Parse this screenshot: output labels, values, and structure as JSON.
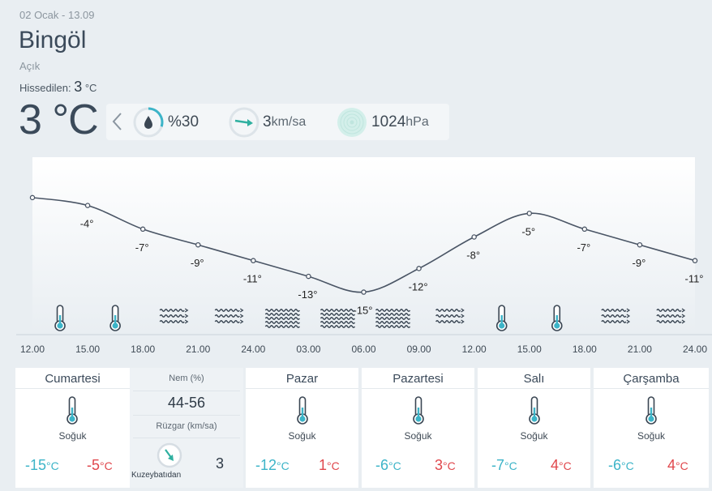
{
  "location": {
    "date": "02 Ocak - 13.09",
    "city": "Bingöl",
    "condition": "Açık",
    "feels_label": "Hissedilen:",
    "feels_value": "3",
    "feels_unit": "°C",
    "temperature": "3 °C"
  },
  "stats": {
    "humidity": "%30",
    "humidity_fraction": 0.3,
    "wind_value": "3",
    "wind_unit": "km/sa",
    "pressure_value": "1024",
    "pressure_unit": "hPa"
  },
  "colors": {
    "accent_teal": "#3cb4c8",
    "hot_red": "#e0474c",
    "line": "#4a5565"
  },
  "chart_data": {
    "type": "line",
    "x": [
      "12.00",
      "15.00",
      "18.00",
      "21.00",
      "24.00",
      "03.00",
      "06.00",
      "09.00",
      "12.00",
      "15.00",
      "18.00",
      "21.00",
      "24.00"
    ],
    "values": [
      -3,
      -4,
      -7,
      -9,
      -11,
      -13,
      -15,
      -12,
      -8,
      -5,
      -7,
      -9,
      -11
    ],
    "labels": [
      "",
      "-4°",
      "-7°",
      "-9°",
      "-11°",
      "-13°",
      "-15°",
      "-12°",
      "-8°",
      "-5°",
      "-7°",
      "-9°",
      "-11°"
    ],
    "icons": [
      "",
      "thermometer-icon",
      "thermometer-icon",
      "wind-icon",
      "wind-icon",
      "heavy-wind-icon",
      "heavy-wind-icon",
      "heavy-wind-icon",
      "wind-icon",
      "thermometer-icon",
      "thermometer-icon",
      "wind-icon",
      "wind-icon"
    ],
    "ylim": [
      -17,
      1
    ]
  },
  "forecast": [
    {
      "day": "Cumartesi",
      "condition": "Soğuk",
      "min": "-15",
      "max": "-5",
      "unit": "°C"
    },
    {
      "day": "Pazar",
      "condition": "Soğuk",
      "min": "-12",
      "max": "1",
      "unit": "°C"
    },
    {
      "day": "Pazartesi",
      "condition": "Soğuk",
      "min": "-6",
      "max": "3",
      "unit": "°C"
    },
    {
      "day": "Salı",
      "condition": "Soğuk",
      "min": "-7",
      "max": "4",
      "unit": "°C"
    },
    {
      "day": "Çarşamba",
      "condition": "Soğuk",
      "min": "-6",
      "max": "4",
      "unit": "°C"
    }
  ],
  "detail": {
    "humidity_label": "Nem (%)",
    "humidity_range": "44-56",
    "wind_label": "Rüzgar (km/sa)",
    "wind_direction": "Kuzeybatıdan",
    "wind_speed": "3"
  }
}
